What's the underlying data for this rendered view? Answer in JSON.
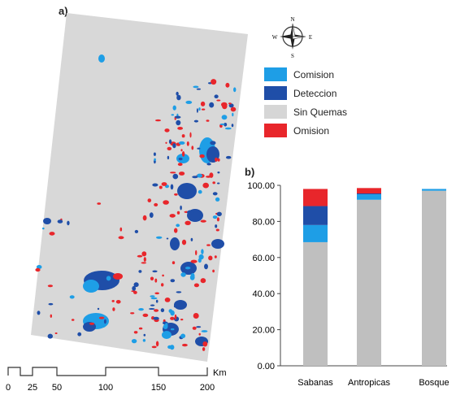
{
  "panel_a": {
    "label": "a)"
  },
  "panel_b": {
    "label": "b)"
  },
  "compass": {
    "n": "N",
    "s": "S",
    "e": "E",
    "w": "W"
  },
  "legend": {
    "items": [
      {
        "label": "Comision",
        "color": "#1e9ee6"
      },
      {
        "label": "Deteccion",
        "color": "#1f4ea8"
      },
      {
        "label": "Sin Quemas",
        "color": "#d6d6d6"
      },
      {
        "label": "Omision",
        "color": "#e8262b"
      }
    ]
  },
  "scale_bar": {
    "unit": "Km",
    "ticks": [
      "0",
      "25",
      "50",
      "100",
      "150",
      "200"
    ]
  },
  "chart_data": {
    "type": "bar",
    "stacked": true,
    "categories": [
      "Sabanas",
      "Antropicas",
      "Bosque"
    ],
    "series": [
      {
        "name": "Sin Quemas",
        "color": "#bfbfbf",
        "values": [
          68.5,
          92,
          97
        ]
      },
      {
        "name": "Comision",
        "color": "#1e9ee6",
        "values": [
          9.5,
          3,
          1
        ]
      },
      {
        "name": "Deteccion",
        "color": "#1f4ea8",
        "values": [
          10.5,
          0.5,
          0
        ]
      },
      {
        "name": "Omision",
        "color": "#e8262b",
        "values": [
          9.5,
          3,
          0
        ]
      }
    ],
    "ylim": [
      0,
      100
    ],
    "yticks": [
      "0.00",
      "20.00",
      "40.00",
      "60.00",
      "80.00",
      "100.00"
    ],
    "grid": false
  }
}
